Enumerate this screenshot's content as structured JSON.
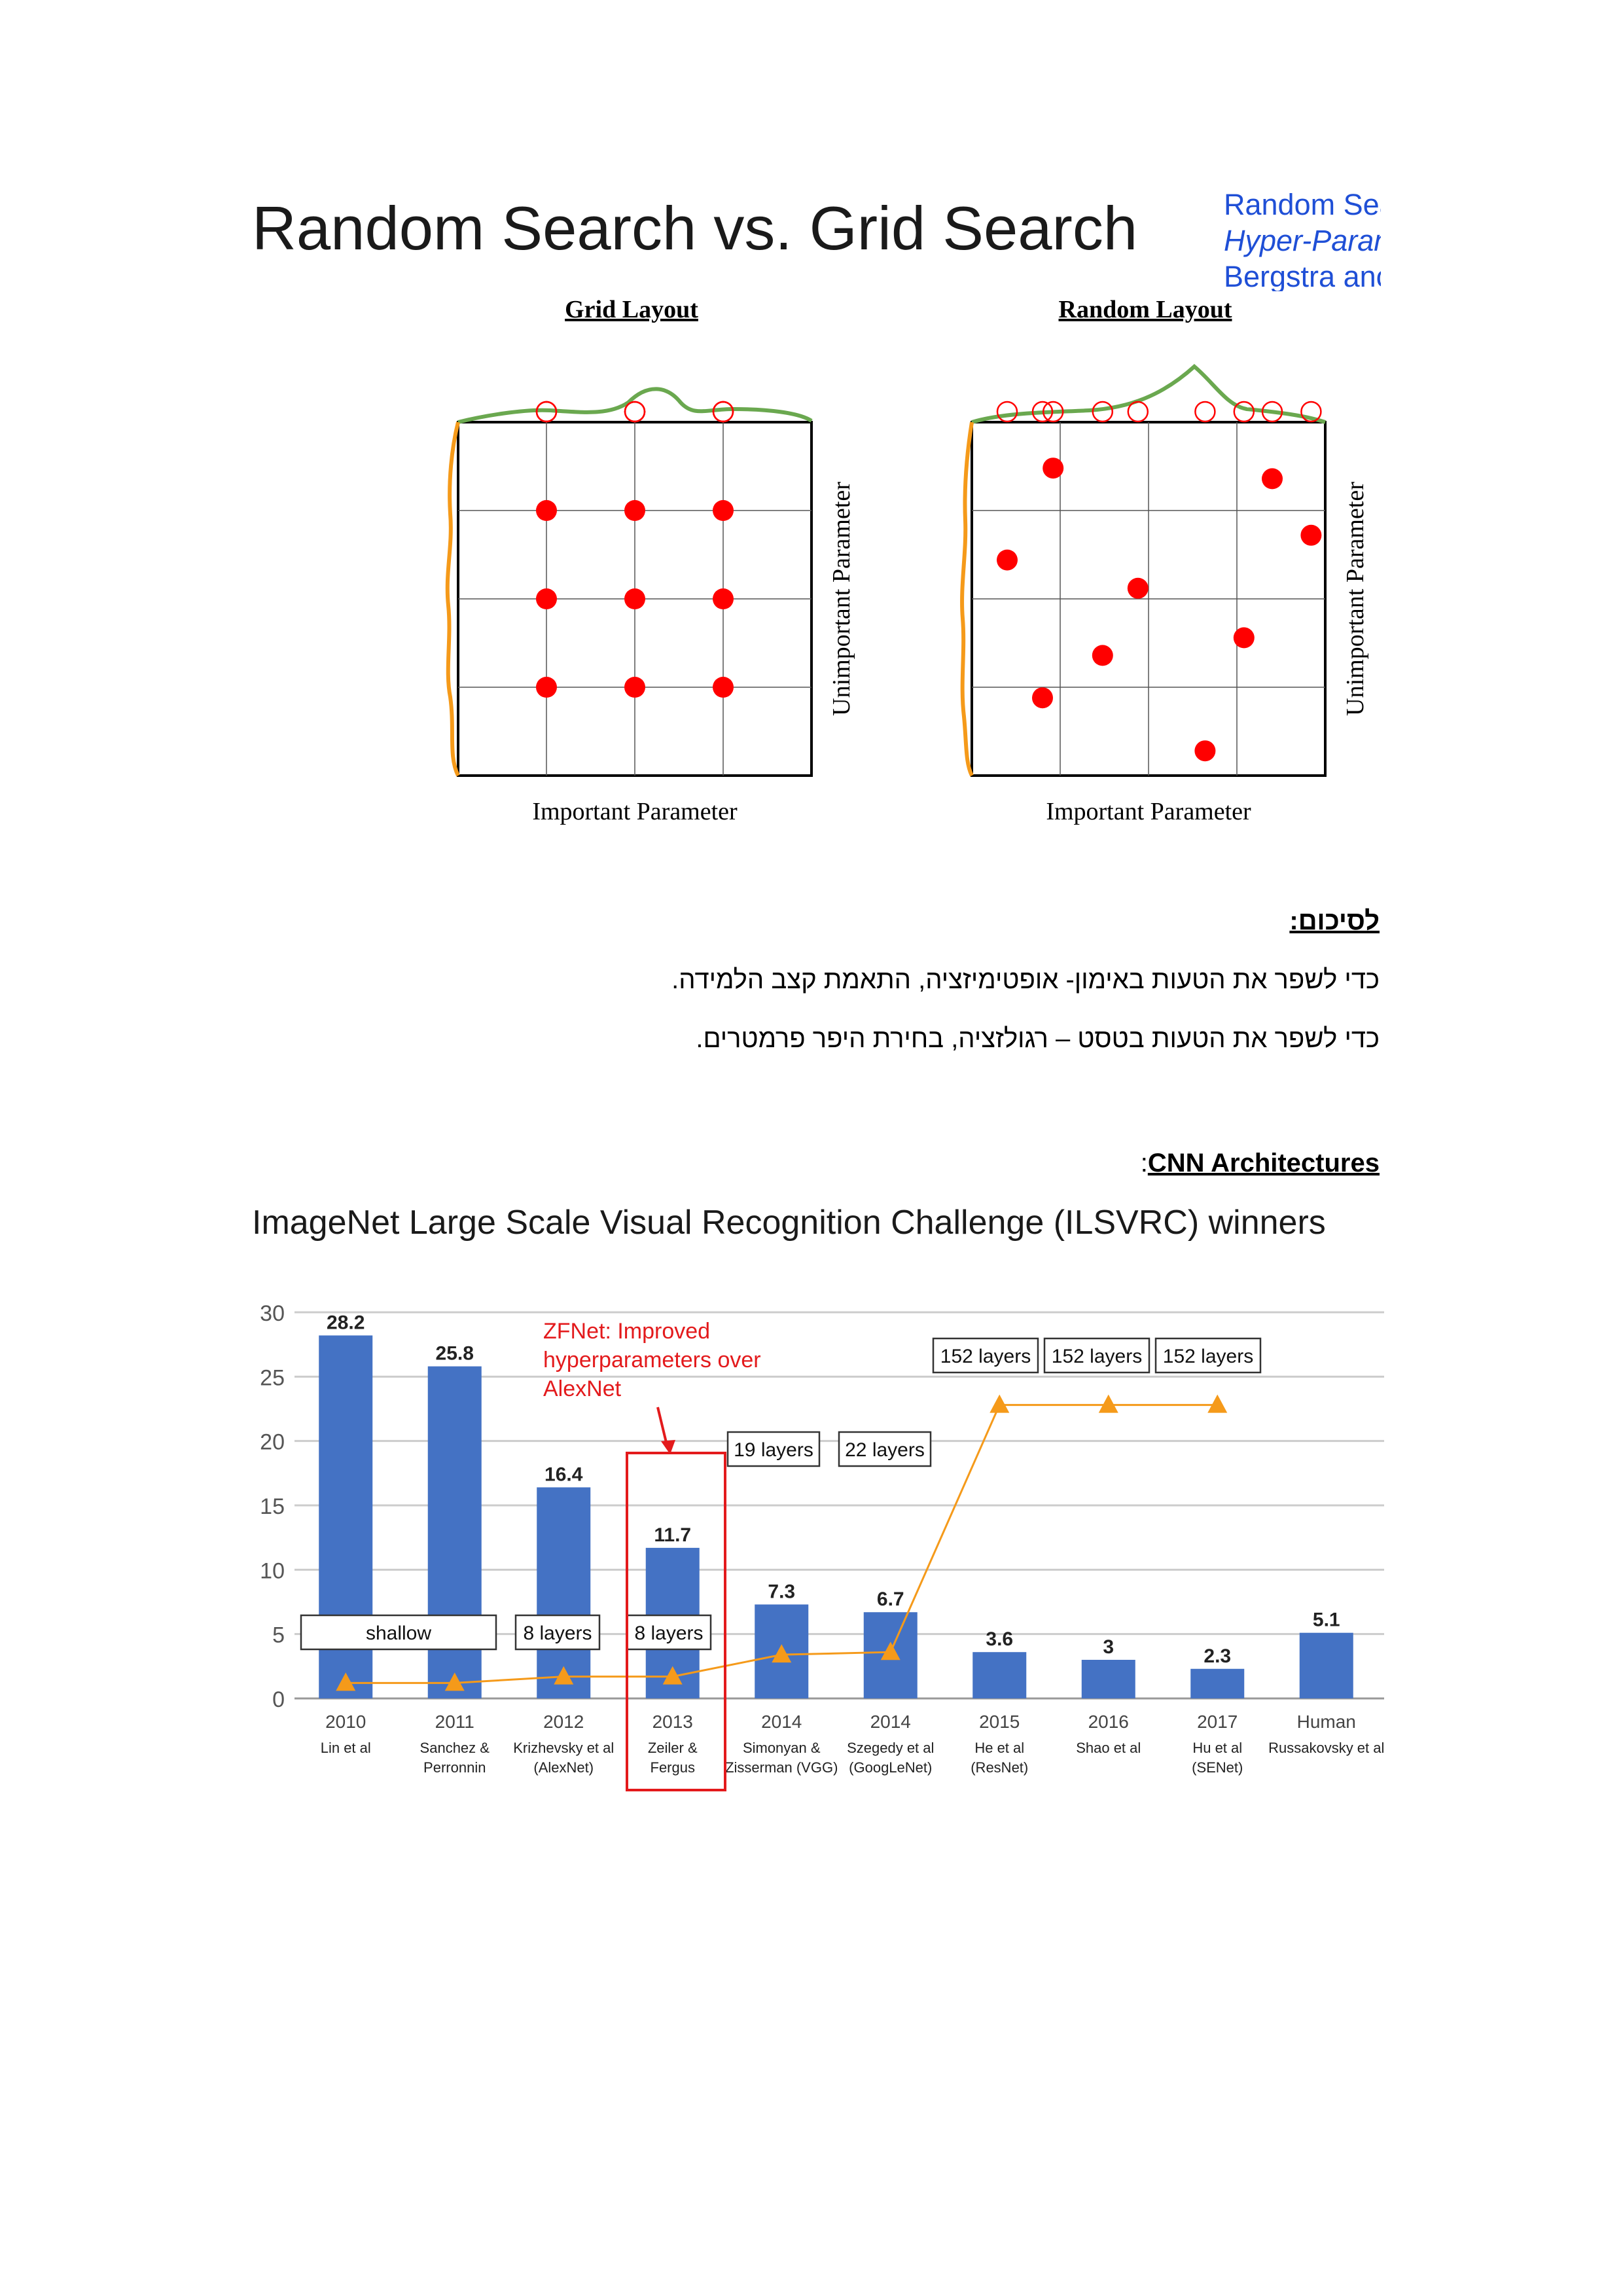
{
  "slide_title": "Random Search vs. Grid Search",
  "reference": {
    "line1": "Random Sea",
    "line2": "Hyper-Paran",
    "line3": "Bergstra anc"
  },
  "grid_figure": {
    "left_title": "Grid Layout",
    "right_title": "Random Layout",
    "x_label": "Important Parameter",
    "y_label": "Unimportant Parameter",
    "grid_points": [
      [
        0.25,
        0.25
      ],
      [
        0.5,
        0.25
      ],
      [
        0.75,
        0.25
      ],
      [
        0.25,
        0.5
      ],
      [
        0.5,
        0.5
      ],
      [
        0.75,
        0.5
      ],
      [
        0.25,
        0.75
      ],
      [
        0.5,
        0.75
      ],
      [
        0.75,
        0.75
      ]
    ],
    "random_points": [
      [
        0.23,
        0.13
      ],
      [
        0.85,
        0.16
      ],
      [
        0.96,
        0.32
      ],
      [
        0.1,
        0.39
      ],
      [
        0.47,
        0.47
      ],
      [
        0.37,
        0.66
      ],
      [
        0.77,
        0.61
      ],
      [
        0.2,
        0.78
      ],
      [
        0.66,
        0.93
      ]
    ],
    "colors": {
      "point": "#ff0000",
      "important_curve": "#6aa84f",
      "unimportant_curve": "#f59a1a"
    }
  },
  "summary": {
    "heading": "לסיכום:",
    "line1": "כדי לשפר את הטעות באימון- אופטימיזציה, התאמת קצב הלמידה.",
    "line2": "כדי לשפר את הטעות בטסט – רגולזציה, בחירת היפר פרמטרים."
  },
  "cnn": {
    "heading": "CNN Architectures",
    "prefix": ":"
  },
  "chart_data": {
    "type": "bar",
    "title": "ImageNet Large Scale Visual Recognition Challenge (ILSVRC) winners",
    "ylim": [
      0,
      30
    ],
    "yticks": [
      0,
      5,
      10,
      15,
      20,
      25,
      30
    ],
    "categories": [
      "2010",
      "2011",
      "2012",
      "2013",
      "2014",
      "2014",
      "2015",
      "2016",
      "2017",
      "Human"
    ],
    "authors": [
      [
        "Lin et al"
      ],
      [
        "Sanchez &",
        "Perronnin"
      ],
      [
        "Krizhevsky et al",
        "(AlexNet)"
      ],
      [
        "Zeiler &",
        "Fergus"
      ],
      [
        "Simonyan &",
        "Zisserman (VGG)"
      ],
      [
        "Szegedy et al",
        "(GoogLeNet)"
      ],
      [
        "He et al",
        "(ResNet)"
      ],
      [
        "Shao et al"
      ],
      [
        "Hu et al",
        "(SENet)"
      ],
      [
        "Russakovsky et al"
      ]
    ],
    "values": [
      28.2,
      25.8,
      16.4,
      11.7,
      7.3,
      6.7,
      3.6,
      3,
      2.3,
      5.1
    ],
    "value_labels": [
      "28.2",
      "25.8",
      "16.4",
      "11.7",
      "7.3",
      "6.7",
      "3.6",
      "3",
      "2.3",
      "5.1"
    ],
    "depth_line": [
      1.2,
      1.2,
      1.7,
      1.7,
      3.4,
      3.6,
      22.8,
      22.8,
      22.8
    ],
    "depth_labels": [
      "shallow",
      "8 layers",
      "8 layers",
      "19 layers",
      "22 layers",
      "152 layers",
      "152 layers",
      "152 layers"
    ],
    "annotation": {
      "line1": "ZFNet: Improved",
      "line2": "hyperparameters over",
      "line3": "AlexNet"
    },
    "highlight_index": 3,
    "colors": {
      "bar": "#4472c4",
      "depth": "#f59a1a",
      "highlight": "#e31a1c",
      "grid": "#cccccc"
    }
  }
}
